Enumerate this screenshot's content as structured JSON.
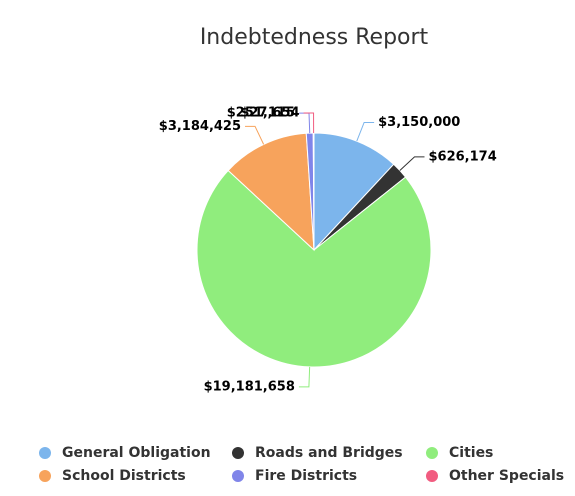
{
  "chart_data": {
    "type": "pie",
    "title": "Indebtedness Report",
    "categories": [
      "General Obligation",
      "Roads and Bridges",
      "Cities",
      "School Districts",
      "Fire Districts",
      "Other Specials"
    ],
    "values": [
      3150000,
      626174,
      19181658,
      3184425,
      251115,
      27654
    ],
    "value_labels": [
      "$3,150,000",
      "$626,174",
      "$19,181,658",
      "$3,184,425",
      "$251,115",
      "$27,654"
    ],
    "colors": [
      "#7cb5ec",
      "#333333",
      "#90ed7d",
      "#f7a35c",
      "#8085e9",
      "#f15c80"
    ]
  }
}
